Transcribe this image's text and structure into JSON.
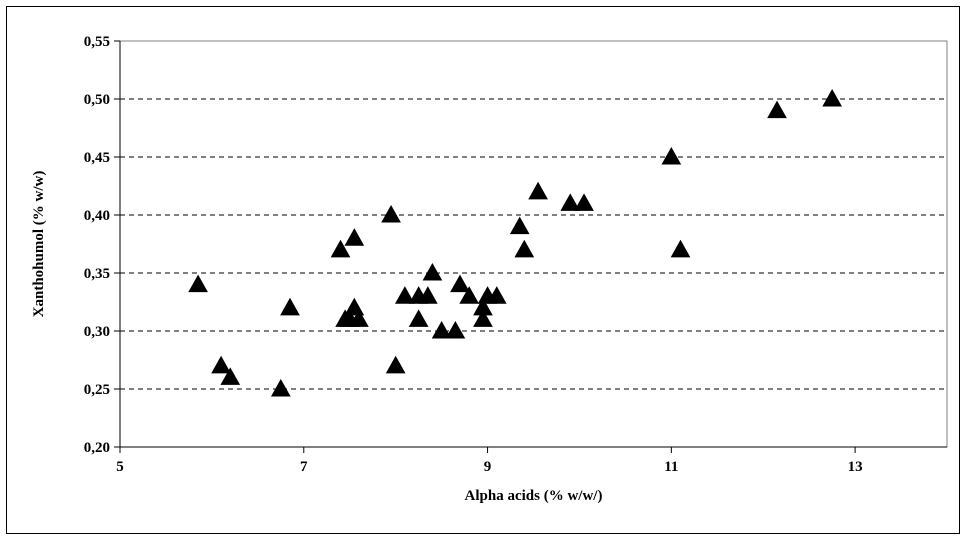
{
  "chart_data": {
    "type": "scatter",
    "title": "",
    "xlabel": "Alpha acids (% w/w/)",
    "ylabel": "Xanthohumol (% w/w)",
    "xlim": [
      5,
      14
    ],
    "ylim": [
      0.2,
      0.55
    ],
    "x_ticks": [
      5,
      7,
      9,
      11,
      13
    ],
    "x_tick_labels": [
      "5",
      "7",
      "9",
      "11",
      "13"
    ],
    "y_ticks": [
      0.2,
      0.25,
      0.3,
      0.35,
      0.4,
      0.45,
      0.5,
      0.55
    ],
    "y_tick_labels": [
      "0,20",
      "0,25",
      "0,30",
      "0,35",
      "0,40",
      "0,45",
      "0,50",
      "0,55"
    ],
    "grid": "horizontal dashed",
    "legend": "none",
    "marker": "triangle",
    "marker_color": "#000000",
    "series": [
      {
        "points": [
          [
            5.85,
            0.34
          ],
          [
            6.1,
            0.27
          ],
          [
            6.2,
            0.26
          ],
          [
            6.75,
            0.25
          ],
          [
            6.85,
            0.32
          ],
          [
            7.4,
            0.37
          ],
          [
            7.45,
            0.31
          ],
          [
            7.5,
            0.31
          ],
          [
            7.55,
            0.32
          ],
          [
            7.55,
            0.38
          ],
          [
            7.6,
            0.31
          ],
          [
            7.95,
            0.4
          ],
          [
            8.0,
            0.27
          ],
          [
            8.1,
            0.33
          ],
          [
            8.25,
            0.31
          ],
          [
            8.25,
            0.33
          ],
          [
            8.35,
            0.33
          ],
          [
            8.4,
            0.35
          ],
          [
            8.5,
            0.3
          ],
          [
            8.65,
            0.3
          ],
          [
            8.7,
            0.34
          ],
          [
            8.8,
            0.33
          ],
          [
            8.95,
            0.32
          ],
          [
            8.95,
            0.31
          ],
          [
            9.0,
            0.33
          ],
          [
            9.1,
            0.33
          ],
          [
            9.35,
            0.39
          ],
          [
            9.4,
            0.37
          ],
          [
            9.55,
            0.42
          ],
          [
            9.9,
            0.41
          ],
          [
            10.05,
            0.41
          ],
          [
            11.0,
            0.45
          ],
          [
            11.1,
            0.37
          ],
          [
            12.15,
            0.49
          ],
          [
            12.75,
            0.5
          ]
        ]
      }
    ]
  }
}
